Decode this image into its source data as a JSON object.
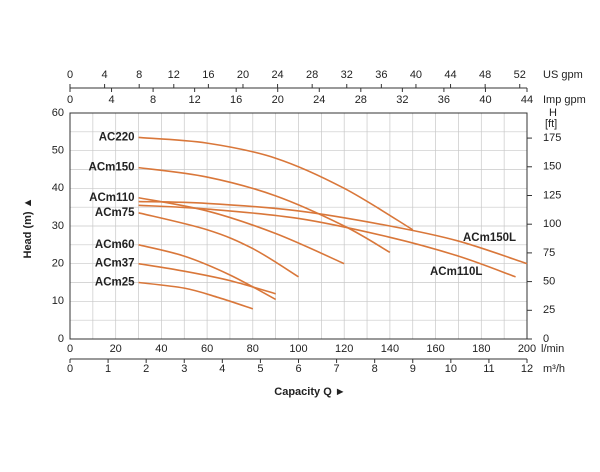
{
  "chart_data": {
    "type": "line",
    "color": "#d9773a",
    "grid": true,
    "x_unit": "l/min",
    "xlim": [
      0,
      200
    ],
    "xticks": [
      0,
      20,
      40,
      60,
      80,
      100,
      120,
      140,
      160,
      180,
      200
    ],
    "ylim": [
      0,
      60
    ],
    "yticks": [
      0,
      10,
      20,
      30,
      40,
      50,
      60
    ],
    "ylabel": "Head (m) ▲",
    "xlabel": "Capacity Q ►",
    "y2_unit_top": "H",
    "y2_unit": "[ft]",
    "y2lim": [
      0,
      196.85
    ],
    "y2ticks": [
      0,
      25,
      50,
      75,
      100,
      125,
      150,
      175
    ],
    "x_us_unit": "US gpm",
    "x_us_lim": [
      0,
      52.84
    ],
    "x_us_ticks": [
      0,
      4,
      8,
      12,
      16,
      20,
      24,
      28,
      32,
      36,
      40,
      44,
      48,
      52
    ],
    "x_imp_unit": "Imp gpm",
    "x_imp_lim": [
      0,
      44
    ],
    "x_imp_ticks": [
      0,
      4,
      8,
      12,
      16,
      20,
      24,
      28,
      32,
      36,
      40,
      44
    ],
    "x_m3_unit": "m³/h",
    "x_m3_lim": [
      0,
      12
    ],
    "x_m3_ticks": [
      0,
      1,
      2,
      3,
      4,
      5,
      6,
      7,
      8,
      9,
      10,
      11,
      12
    ],
    "series": [
      {
        "name": "AC220",
        "x": [
          30,
          60,
          90,
          120,
          150
        ],
        "values": [
          53.5,
          52,
          48,
          40,
          29
        ]
      },
      {
        "name": "ACm150",
        "x": [
          30,
          60,
          90,
          120,
          140
        ],
        "values": [
          45.5,
          43,
          38,
          30,
          23
        ]
      },
      {
        "name": "ACm110",
        "x": [
          30,
          60,
          90,
          120
        ],
        "values": [
          37.5,
          34,
          28,
          20
        ]
      },
      {
        "name": "ACm75",
        "x": [
          30,
          60,
          80,
          100
        ],
        "values": [
          33.5,
          29,
          24,
          16.5
        ]
      },
      {
        "name": "ACm60",
        "x": [
          30,
          50,
          70,
          90
        ],
        "values": [
          25,
          22,
          17,
          10.5
        ]
      },
      {
        "name": "ACm37",
        "x": [
          30,
          50,
          70,
          90
        ],
        "values": [
          20,
          18,
          15.5,
          12
        ]
      },
      {
        "name": "ACm25",
        "x": [
          30,
          50,
          65,
          80
        ],
        "values": [
          15,
          13.5,
          11,
          8
        ]
      },
      {
        "name": "ACm150L",
        "x": [
          30,
          60,
          100,
          140,
          170,
          200
        ],
        "values": [
          36.5,
          36,
          34,
          30,
          26,
          20
        ]
      },
      {
        "name": "ACm110L",
        "x": [
          30,
          60,
          100,
          140,
          170,
          195
        ],
        "values": [
          35.5,
          34.5,
          32,
          27,
          22,
          16.5
        ]
      }
    ]
  }
}
